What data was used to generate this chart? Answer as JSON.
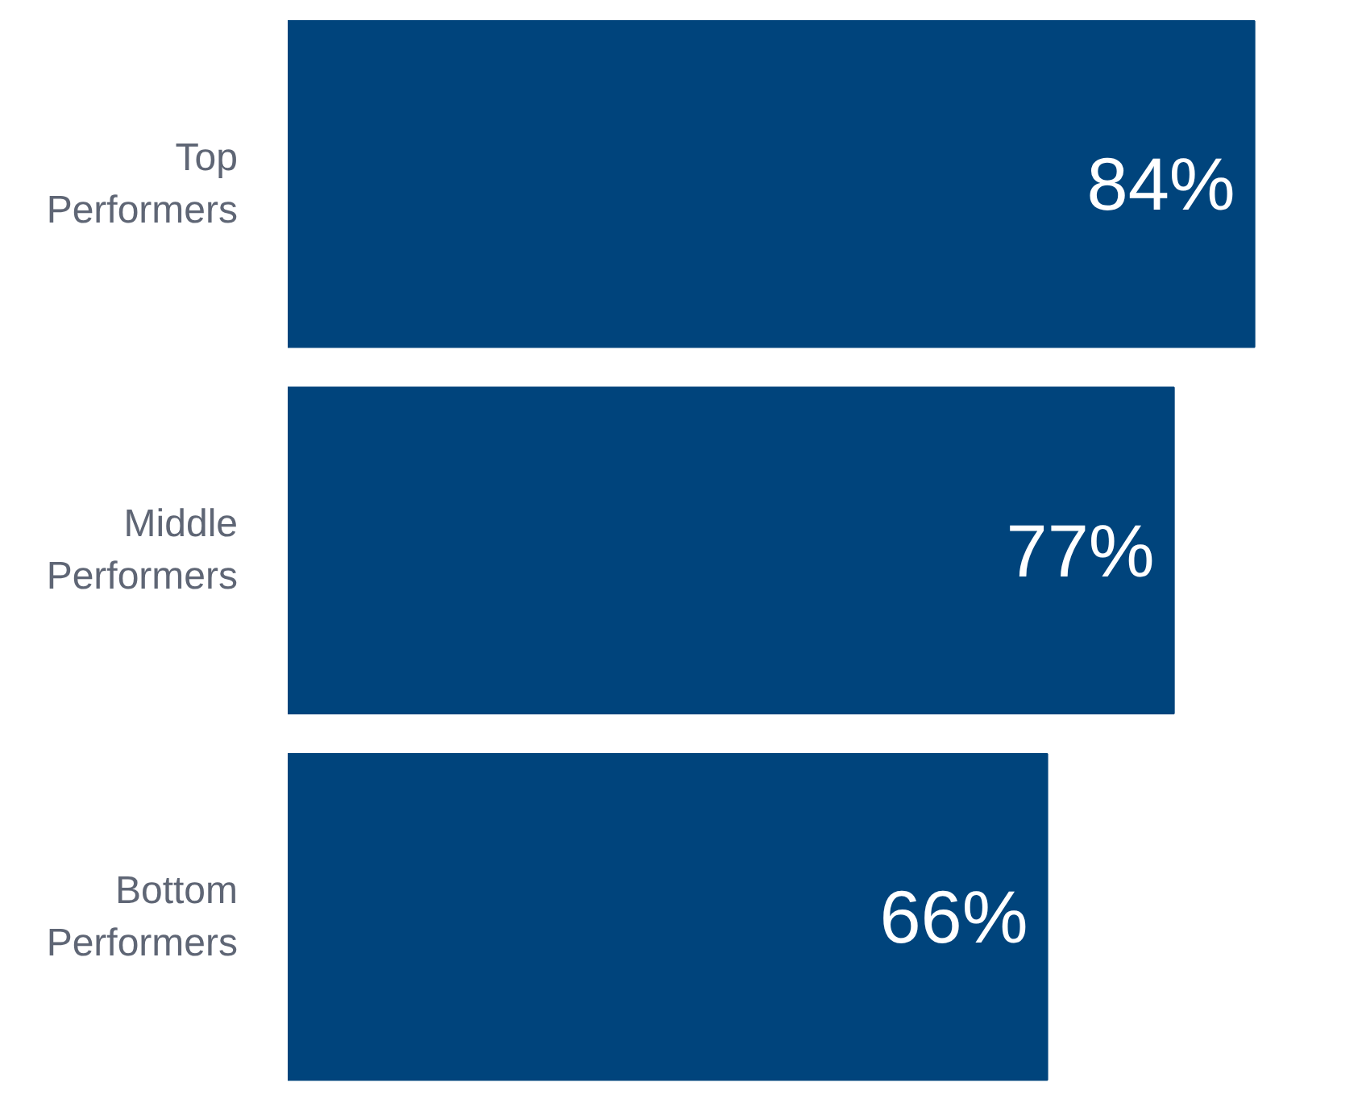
{
  "chart_data": {
    "type": "bar",
    "orientation": "horizontal",
    "categories": [
      "Top Performers",
      "Middle Performers",
      "Bottom Performers"
    ],
    "values": [
      84,
      77,
      66
    ],
    "value_labels": [
      "84%",
      "77%",
      "66%"
    ],
    "color": "#00447c",
    "grid": false
  }
}
